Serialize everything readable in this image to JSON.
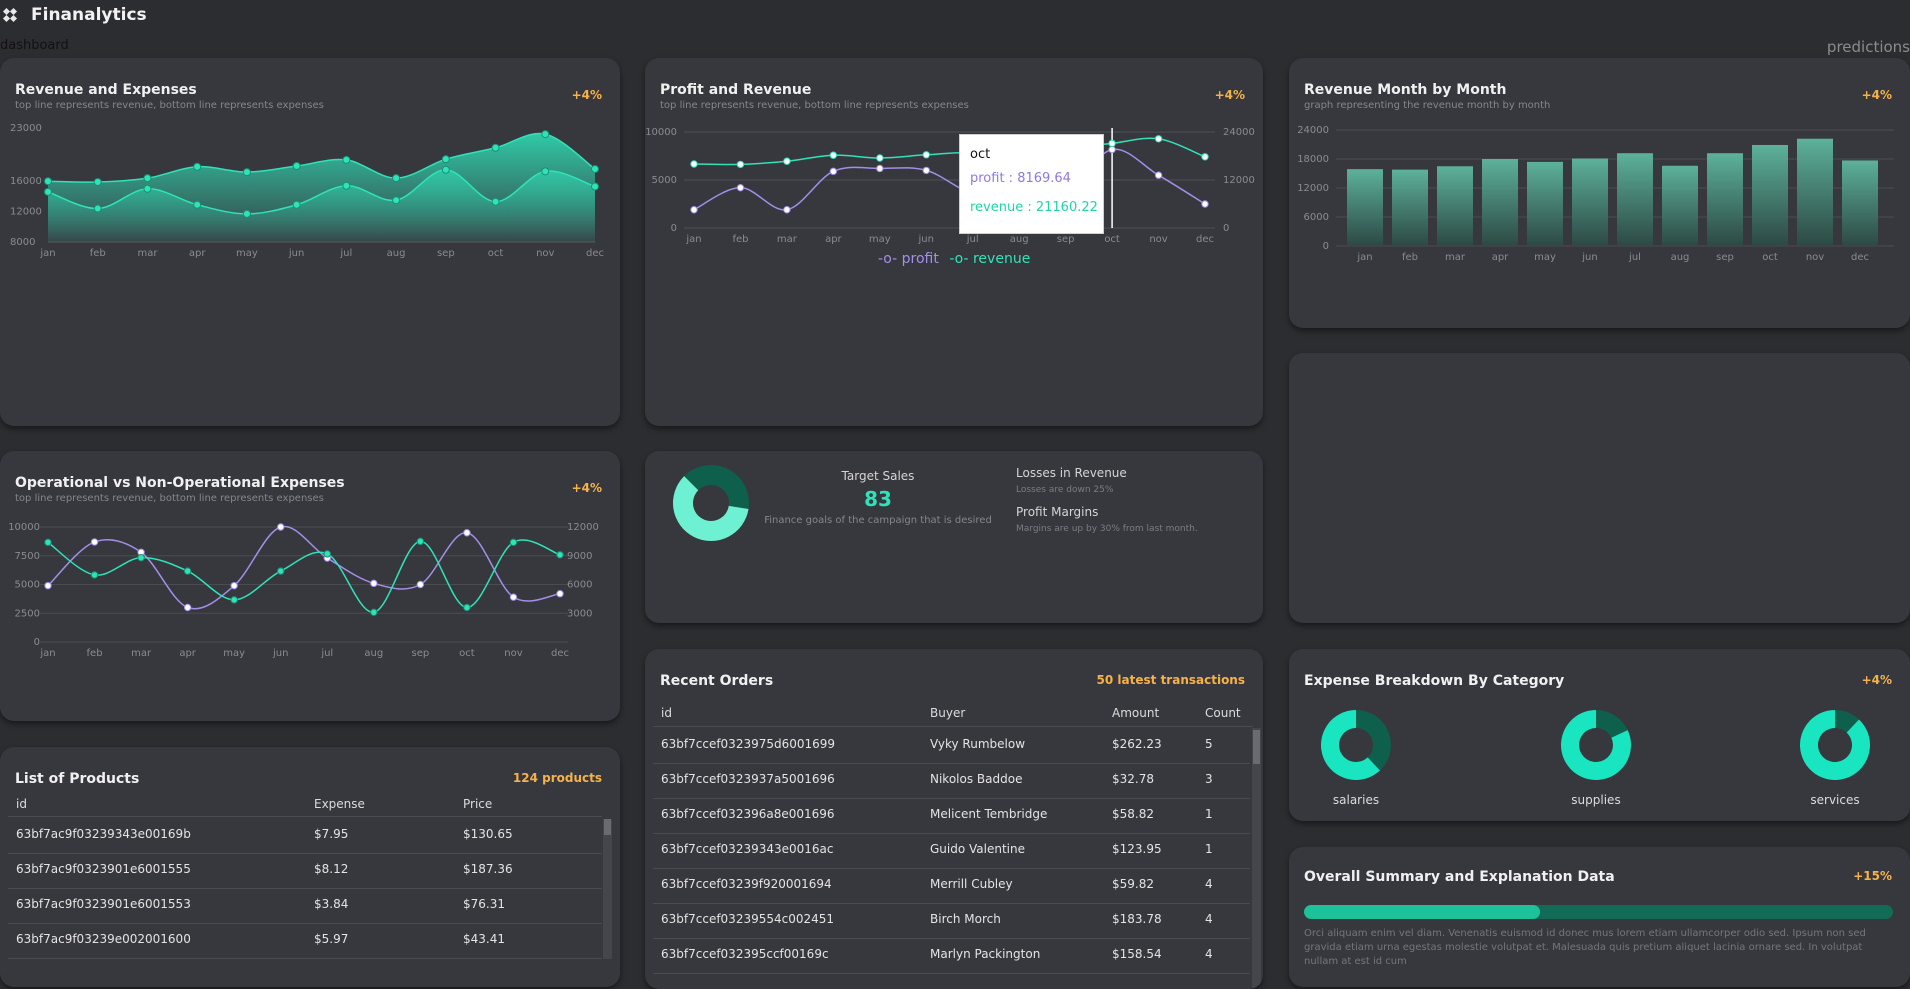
{
  "app": {
    "title": "Finanalytics",
    "nav_left": "dashboard",
    "nav_right": "predictions"
  },
  "months": [
    "jan",
    "feb",
    "mar",
    "apr",
    "may",
    "jun",
    "jul",
    "aug",
    "sep",
    "oct",
    "nov",
    "dec"
  ],
  "cards": {
    "revenue_expenses": {
      "title": "Revenue and Expenses",
      "subtitle": "top line represents revenue, bottom line represents expenses",
      "badge": "+4%",
      "yticks": [
        "23000",
        "16000",
        "12000",
        "8000"
      ]
    },
    "profit_revenue": {
      "title": "Profit and Revenue",
      "subtitle": "top line represents revenue, bottom line represents expenses",
      "badge": "+4%",
      "yticks_left": [
        "10000",
        "5000",
        "0"
      ],
      "yticks_right": [
        "24000",
        "12000",
        "0"
      ],
      "legend": [
        "profit",
        "revenue"
      ],
      "tooltip": {
        "title": "oct",
        "profit": "profit : 8169.64",
        "revenue": "revenue : 21160.22"
      }
    },
    "revenue_month": {
      "title": "Revenue Month by Month",
      "subtitle": "graph representing the revenue month by month",
      "badge": "+4%",
      "yticks": [
        "24000",
        "18000",
        "12000",
        "6000",
        "0"
      ]
    },
    "operational": {
      "title": "Operational vs Non-Operational Expenses",
      "subtitle": "top line represents revenue, bottom line represents expenses",
      "badge": "+4%",
      "yticks_left": [
        "10000",
        "7500",
        "5000",
        "2500",
        "0"
      ],
      "yticks_right": [
        "12000",
        "9000",
        "6000",
        "3000"
      ]
    },
    "target": {
      "label": "Target Sales",
      "value": "83",
      "note": "Finance goals of the campaign that is desired",
      "losses_title": "Losses in Revenue",
      "losses_note": "Losses are down 25%",
      "margins_title": "Profit Margins",
      "margins_note": "Margins are up by 30% from last month.",
      "pie_fraction": 0.6
    },
    "products": {
      "title": "List of Products",
      "badge": "124 products",
      "columns": [
        "id",
        "Expense",
        "Price"
      ],
      "rows": [
        [
          "63bf7ac9f03239343e00169b",
          "$7.95",
          "$130.65"
        ],
        [
          "63bf7ac9f0323901e6001555",
          "$8.12",
          "$187.36"
        ],
        [
          "63bf7ac9f0323901e6001553",
          "$3.84",
          "$76.31"
        ],
        [
          "63bf7ac9f03239e002001600",
          "$5.97",
          "$43.41"
        ]
      ]
    },
    "orders": {
      "title": "Recent Orders",
      "badge": "50 latest transactions",
      "columns": [
        "id",
        "Buyer",
        "Amount",
        "Count"
      ],
      "rows": [
        [
          "63bf7ccef0323975d6001699",
          "Vyky Rumbelow",
          "$262.23",
          "5"
        ],
        [
          "63bf7ccef0323937a5001696",
          "Nikolos Baddoe",
          "$32.78",
          "3"
        ],
        [
          "63bf7ccef032396a8e001696",
          "Melicent Tembridge",
          "$58.82",
          "1"
        ],
        [
          "63bf7ccef03239343e0016ac",
          "Guido Valentine",
          "$123.95",
          "1"
        ],
        [
          "63bf7ccef03239f920001694",
          "Merrill Cubley",
          "$59.82",
          "4"
        ],
        [
          "63bf7ccef03239554c002451",
          "Birch Morch",
          "$183.78",
          "4"
        ],
        [
          "63bf7ccef032395ccf00169c",
          "Marlyn Packington",
          "$158.54",
          "4"
        ]
      ]
    },
    "expense_breakdown": {
      "title": "Expense Breakdown By Category",
      "badge": "+4%",
      "items": [
        {
          "label": "salaries",
          "fraction": 0.62
        },
        {
          "label": "supplies",
          "fraction": 0.82
        },
        {
          "label": "services",
          "fraction": 0.88
        }
      ]
    },
    "summary": {
      "title": "Overall Summary and Explanation Data",
      "badge": "+15%",
      "progress": 0.4,
      "text": "Orci aliquam enim vel diam. Venenatis euismod id donec mus lorem etiam ullamcorper odio sed. Ipsum non sed gravida etiam urna egestas molestie volutpat et. Malesuada quis pretium aliquet lacinia ornare sed. In volutpat nullam at est id cum"
    }
  },
  "colors": {
    "accent": "#2fe3b9",
    "purple": "#a38ee9",
    "orange": "#f6b24a",
    "dark_teal": "#116b56"
  },
  "chart_data": [
    {
      "type": "area",
      "title": "Revenue and Expenses",
      "categories": [
        "jan",
        "feb",
        "mar",
        "apr",
        "may",
        "jun",
        "jul",
        "aug",
        "sep",
        "oct",
        "nov",
        "dec"
      ],
      "ylim": [
        8000,
        23000
      ],
      "series": [
        {
          "name": "revenue",
          "values": [
            16000,
            15900,
            16400,
            17900,
            17200,
            18000,
            18800,
            16400,
            18900,
            20400,
            22200,
            17600
          ]
        },
        {
          "name": "expenses",
          "values": [
            14600,
            12400,
            15000,
            12900,
            11700,
            12900,
            15400,
            13500,
            17500,
            13300,
            17300,
            15300
          ]
        }
      ]
    },
    {
      "type": "line",
      "title": "Profit and Revenue",
      "categories": [
        "jan",
        "feb",
        "mar",
        "apr",
        "may",
        "jun",
        "jul",
        "aug",
        "sep",
        "oct",
        "nov",
        "dec"
      ],
      "series": [
        {
          "name": "profit",
          "axis": "left",
          "ylim": [
            0,
            10000
          ],
          "values": [
            1900,
            4200,
            1900,
            5900,
            6200,
            6000,
            3600,
            3500,
            3700,
            8169.64,
            5500,
            2500
          ]
        },
        {
          "name": "revenue",
          "axis": "right",
          "ylim": [
            0,
            24000
          ],
          "values": [
            16000,
            15900,
            16700,
            18200,
            17500,
            18300,
            18800,
            16900,
            19700,
            21160.22,
            22300,
            17800
          ]
        }
      ]
    },
    {
      "type": "bar",
      "title": "Revenue Month by Month",
      "categories": [
        "jan",
        "feb",
        "mar",
        "apr",
        "may",
        "jun",
        "jul",
        "aug",
        "sep",
        "oct",
        "nov",
        "dec"
      ],
      "ylim": [
        0,
        24000
      ],
      "values": [
        15900,
        15800,
        16500,
        18000,
        17400,
        18100,
        19200,
        16600,
        19200,
        20900,
        22200,
        17700
      ]
    },
    {
      "type": "line",
      "title": "Operational vs Non-Operational Expenses",
      "categories": [
        "jan",
        "feb",
        "mar",
        "apr",
        "may",
        "jun",
        "jul",
        "aug",
        "sep",
        "oct",
        "nov",
        "dec"
      ],
      "series": [
        {
          "name": "operational",
          "axis": "left",
          "ylim": [
            0,
            10000
          ],
          "values": [
            4900,
            8700,
            7800,
            3000,
            4900,
            10000,
            7300,
            5100,
            5000,
            9500,
            3900,
            4200
          ]
        },
        {
          "name": "non-operational",
          "axis": "right",
          "ylim": [
            0,
            12000
          ],
          "values": [
            10400,
            7000,
            8800,
            7400,
            4400,
            7400,
            9200,
            3100,
            10500,
            3600,
            10400,
            9100
          ]
        }
      ]
    }
  ]
}
